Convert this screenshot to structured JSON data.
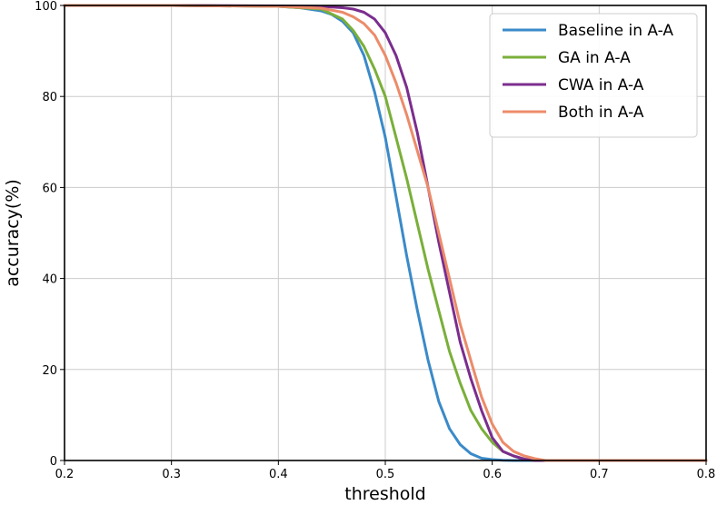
{
  "chart_data": {
    "type": "line",
    "xlabel": "threshold",
    "ylabel": "accuracy(%)",
    "xlim": [
      0.2,
      0.8
    ],
    "ylim": [
      0,
      100
    ],
    "xticks": [
      "0.2",
      "0.3",
      "0.4",
      "0.5",
      "0.6",
      "0.7",
      "0.8"
    ],
    "yticks": [
      "0",
      "20",
      "40",
      "60",
      "80",
      "100"
    ],
    "grid": true,
    "legend_position": "top-right",
    "series": [
      {
        "name": "Baseline in A-A",
        "color": "#3a8ac9",
        "x": [
          0.2,
          0.3,
          0.4,
          0.42,
          0.44,
          0.45,
          0.46,
          0.47,
          0.48,
          0.49,
          0.5,
          0.51,
          0.52,
          0.53,
          0.54,
          0.55,
          0.56,
          0.57,
          0.58,
          0.59,
          0.6,
          0.61,
          0.62,
          0.7,
          0.8
        ],
        "y": [
          100,
          100,
          99.8,
          99.5,
          98.8,
          98,
          96.5,
          94,
          89,
          81,
          71,
          58,
          45,
          33,
          22,
          13,
          7,
          3.5,
          1.5,
          0.5,
          0.2,
          0.05,
          0,
          0,
          0
        ]
      },
      {
        "name": "GA in A-A",
        "color": "#7aaf3a",
        "x": [
          0.2,
          0.3,
          0.4,
          0.44,
          0.46,
          0.47,
          0.48,
          0.49,
          0.5,
          0.51,
          0.52,
          0.53,
          0.54,
          0.55,
          0.56,
          0.57,
          0.58,
          0.59,
          0.6,
          0.61,
          0.62,
          0.63,
          0.64,
          0.7,
          0.8
        ],
        "y": [
          100,
          100,
          99.8,
          99.2,
          97,
          94.5,
          91,
          86,
          80,
          71,
          62,
          52,
          42,
          33,
          24,
          17,
          11,
          7,
          4,
          2,
          1,
          0.3,
          0,
          0,
          0
        ]
      },
      {
        "name": "CWA in A-A",
        "color": "#7b2d8e",
        "x": [
          0.2,
          0.3,
          0.4,
          0.44,
          0.46,
          0.47,
          0.48,
          0.49,
          0.5,
          0.51,
          0.52,
          0.53,
          0.54,
          0.55,
          0.56,
          0.57,
          0.58,
          0.59,
          0.6,
          0.61,
          0.62,
          0.63,
          0.64,
          0.7,
          0.8
        ],
        "y": [
          100,
          100,
          99.9,
          99.8,
          99.5,
          99.2,
          98.5,
          97,
          94,
          89,
          82,
          72,
          60,
          48,
          37,
          26,
          18,
          11,
          5,
          2,
          1,
          0.3,
          0,
          0,
          0
        ]
      },
      {
        "name": "Both in A-A",
        "color": "#ec8b6a",
        "x": [
          0.2,
          0.3,
          0.4,
          0.44,
          0.46,
          0.47,
          0.48,
          0.49,
          0.5,
          0.51,
          0.52,
          0.53,
          0.54,
          0.55,
          0.56,
          0.57,
          0.58,
          0.59,
          0.6,
          0.61,
          0.62,
          0.63,
          0.64,
          0.65,
          0.7,
          0.8
        ],
        "y": [
          100,
          100,
          99.8,
          99.4,
          98.5,
          97.5,
          96,
          93.5,
          89,
          83,
          76,
          68,
          60,
          50,
          40,
          30,
          22,
          14,
          8,
          4,
          2,
          1,
          0.4,
          0,
          0,
          0
        ]
      }
    ]
  }
}
